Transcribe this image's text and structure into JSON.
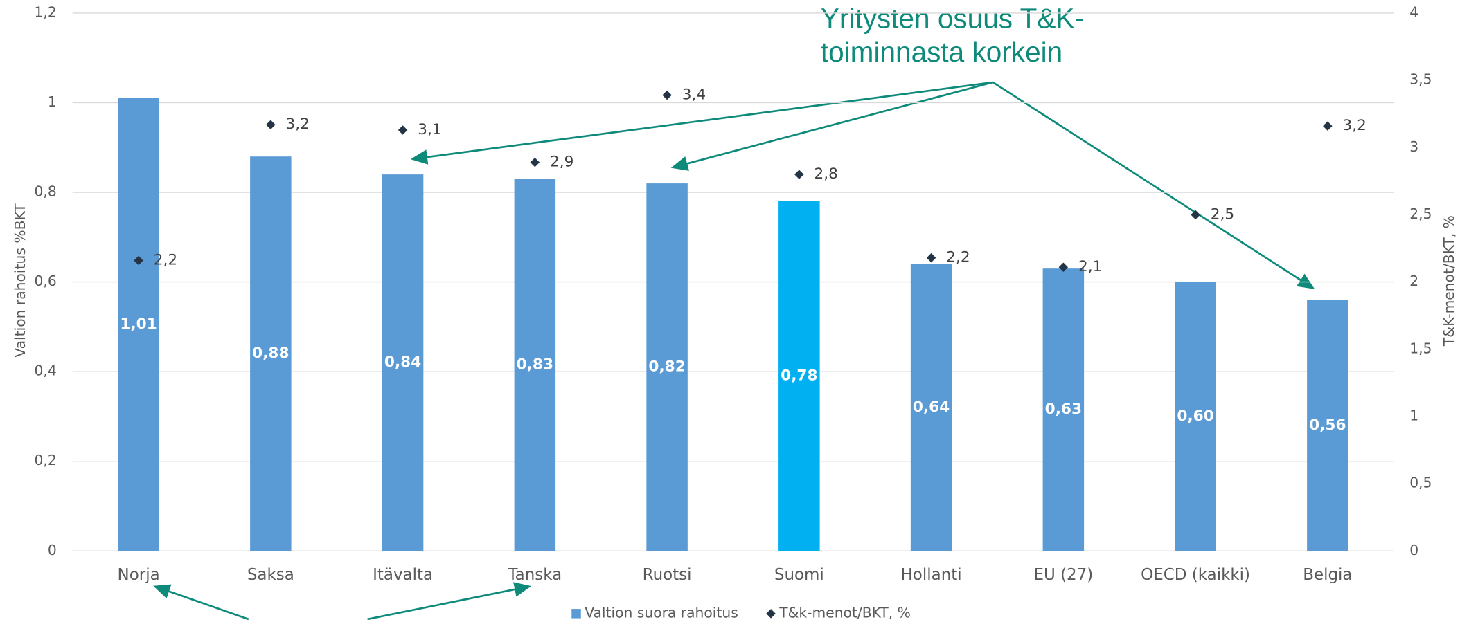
{
  "chart_data": {
    "type": "bar",
    "annotation": [
      "Yritysten osuus T&K-",
      "toiminnasta korkein"
    ],
    "y_label": "Valtion rahoitus %BKT",
    "y2_label": "T&K-menot/BKT, %",
    "categories": [
      "Norja",
      "Saksa",
      "Itävalta",
      "Tanska",
      "Ruotsi",
      "Suomi",
      "Hollanti",
      "EU (27)",
      "OECD (kaikki)",
      "Belgia"
    ],
    "series": [
      {
        "name": "Valtion suora rahoitus",
        "type": "bar",
        "color": "#5b9bd5",
        "colors": [
          "#5b9bd5",
          "#5b9bd5",
          "#5b9bd5",
          "#5b9bd5",
          "#5b9bd5",
          "#00b0f0",
          "#5b9bd5",
          "#5b9bd5",
          "#5b9bd5",
          "#5b9bd5"
        ],
        "values": [
          1.01,
          0.88,
          0.84,
          0.83,
          0.82,
          0.78,
          0.64,
          0.63,
          0.6,
          0.56
        ],
        "value_labels": [
          "1,01",
          "0,88",
          "0,84",
          "0,83",
          "0,82",
          "0,78",
          "0,64",
          "0,63",
          "0,60",
          "0,56"
        ]
      },
      {
        "name": "T&k-menot/BKT, %",
        "type": "scatter",
        "axis": "y2",
        "color": "#243447",
        "values": [
          2.16,
          3.17,
          3.13,
          2.89,
          3.39,
          2.8,
          2.18,
          2.11,
          2.5,
          3.16
        ],
        "value_labels": [
          "2,2",
          "3,2",
          "3,1",
          "2,9",
          "3,4",
          "2,8",
          "2,2",
          "2,1",
          "2,5",
          "3,2"
        ]
      }
    ],
    "ylim": [
      0,
      1.2
    ],
    "yticks": [
      0,
      {
        "value": 0.2,
        "label": "0,2"
      },
      {
        "value": 0.4,
        "label": "0,4"
      },
      {
        "value": 0.6,
        "label": "0,6"
      },
      {
        "value": 0.8,
        "label": "0,8"
      },
      1,
      {
        "value": 1.2,
        "label": "1,2"
      }
    ],
    "y2lim": [
      0,
      4
    ],
    "y2ticks": [
      0,
      {
        "value": 0.5,
        "label": "0,5"
      },
      1,
      {
        "value": 1.5,
        "label": "1,5"
      },
      2,
      {
        "value": 2.5,
        "label": "2,5"
      },
      3,
      {
        "value": 3.5,
        "label": "3,5"
      },
      4
    ],
    "grid": true,
    "legend": "bottom"
  }
}
